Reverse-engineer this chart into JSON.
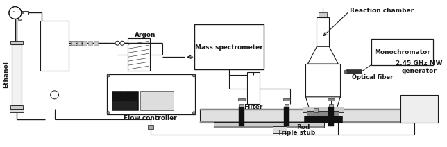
{
  "bg_color": "#ffffff",
  "lc": "#1a1a1a",
  "labels": {
    "ethanol": "Ethanol",
    "argon": "Argon",
    "mass_spec": "Mass spectrometer",
    "filter": "Filter",
    "flow_controller": "Flow controller",
    "reaction_chamber": "Reaction chamber",
    "monochromator": "Monochromator",
    "optical_fiber": "Optical fiber",
    "mw_generator": "2.45 GHz MW\ngenerator",
    "rod": "Rod",
    "triple_stub": "Triple stub"
  },
  "figsize": [
    6.44,
    2.12
  ],
  "dpi": 100
}
